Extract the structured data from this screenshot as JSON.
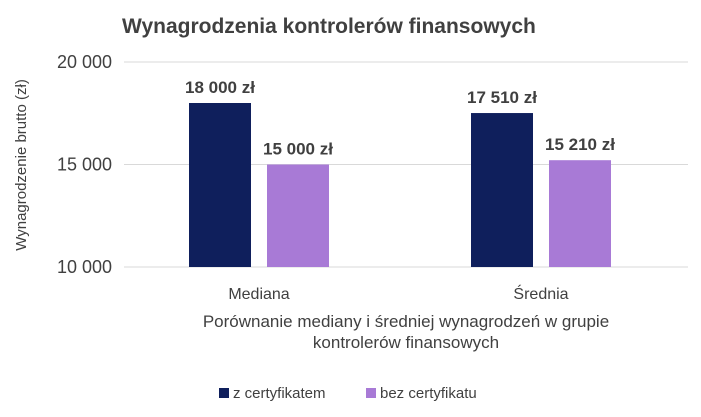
{
  "chart_data": {
    "type": "bar",
    "title": "Wynagrodzenia kontrolerów finansowych",
    "ylabel": "Wynagrodzenie brutto (zł)",
    "xlabel_lines": [
      "Porównanie mediany i średniej wynagrodzeń w grupie",
      "kontrolerów finansowych"
    ],
    "categories": [
      "Mediana",
      "Średnia"
    ],
    "ylim": [
      10000,
      20000
    ],
    "yticks": [
      {
        "value": 10000,
        "label": "10 000"
      },
      {
        "value": 15000,
        "label": "15 000"
      },
      {
        "value": 20000,
        "label": "20 000"
      }
    ],
    "grid": true,
    "legend_position": "bottom",
    "series": [
      {
        "name": "z certyfikatem",
        "color": "#0f1f5c",
        "values": [
          18000,
          17510
        ],
        "labels": [
          "18 000 zł",
          "17 510 zł"
        ]
      },
      {
        "name": "bez certyfikatu",
        "color": "#a87ad6",
        "values": [
          15000,
          15210
        ],
        "labels": [
          "15 000 zł",
          "15 210 zł"
        ]
      }
    ]
  }
}
